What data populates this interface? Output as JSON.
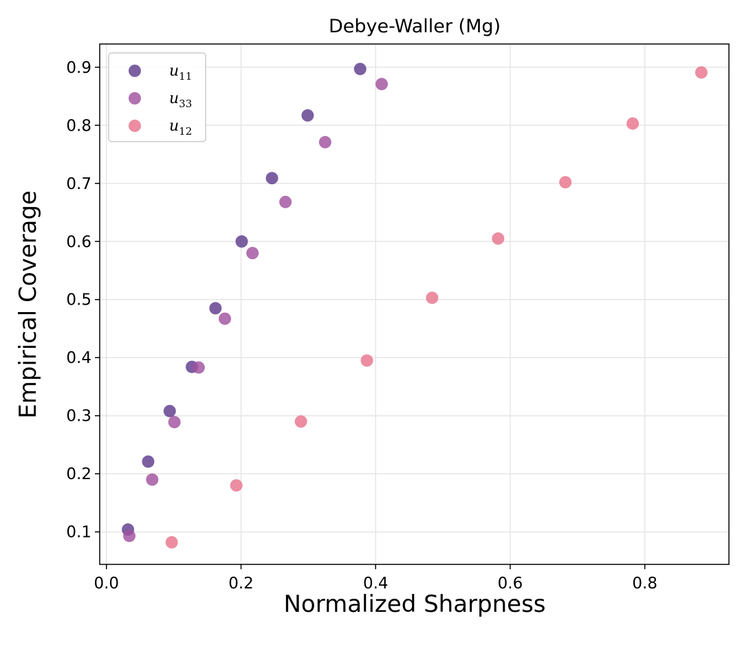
{
  "chart_data": {
    "type": "scatter",
    "title": "Debye-Waller (Mg)",
    "xlabel": "Normalized Sharpness",
    "ylabel": "Empirical Coverage",
    "xlim": [
      -0.01,
      0.925
    ],
    "ylim": [
      0.044,
      0.94
    ],
    "xticks": [
      0.0,
      0.2,
      0.4,
      0.6,
      0.8
    ],
    "xtick_labels": [
      "0.0",
      "0.2",
      "0.4",
      "0.6",
      "0.8"
    ],
    "yticks": [
      0.1,
      0.2,
      0.3,
      0.4,
      0.5,
      0.6,
      0.7,
      0.8,
      0.9
    ],
    "ytick_labels": [
      "0.1",
      "0.2",
      "0.3",
      "0.4",
      "0.5",
      "0.6",
      "0.7",
      "0.8",
      "0.9"
    ],
    "grid": true,
    "legend_position": "top-left",
    "series": [
      {
        "name": "u11",
        "label_main": "u",
        "label_sub": "11",
        "color": "#5e3c8c",
        "x": [
          0.032,
          0.062,
          0.094,
          0.127,
          0.162,
          0.201,
          0.246,
          0.299,
          0.377
        ],
        "y": [
          0.104,
          0.221,
          0.308,
          0.384,
          0.485,
          0.6,
          0.709,
          0.817,
          0.897
        ]
      },
      {
        "name": "u33",
        "label_main": "u",
        "label_sub": "33",
        "color": "#a1529f",
        "x": [
          0.034,
          0.068,
          0.101,
          0.137,
          0.176,
          0.217,
          0.266,
          0.325,
          0.409
        ],
        "y": [
          0.093,
          0.19,
          0.289,
          0.383,
          0.467,
          0.58,
          0.668,
          0.771,
          0.871
        ]
      },
      {
        "name": "u12",
        "label_main": "u",
        "label_sub": "12",
        "color": "#e8748c",
        "x": [
          0.097,
          0.193,
          0.289,
          0.387,
          0.484,
          0.582,
          0.682,
          0.782,
          0.884
        ],
        "y": [
          0.082,
          0.18,
          0.29,
          0.395,
          0.503,
          0.605,
          0.702,
          0.803,
          0.891
        ]
      }
    ]
  }
}
